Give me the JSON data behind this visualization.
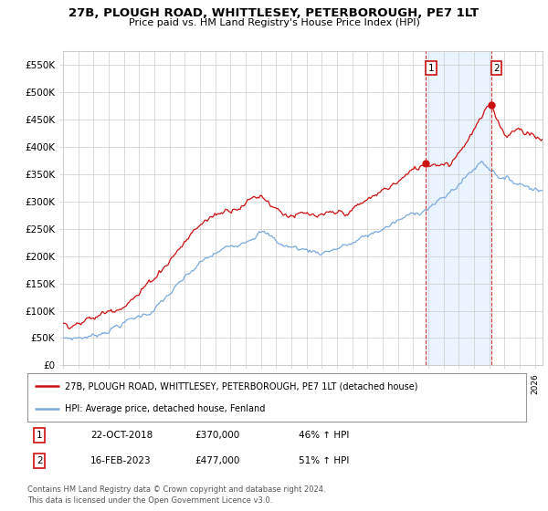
{
  "title": "27B, PLOUGH ROAD, WHITTLESEY, PETERBOROUGH, PE7 1LT",
  "subtitle": "Price paid vs. HM Land Registry's House Price Index (HPI)",
  "ylim": [
    0,
    575000
  ],
  "xlim_start": 1995.0,
  "xlim_end": 2026.5,
  "hpi_color": "#7aaadd",
  "price_color": "#cc1111",
  "marker1_date": 2018.81,
  "marker2_date": 2023.12,
  "marker1_value": 370000,
  "marker2_value": 477000,
  "fill_color": "#ddeeff",
  "legend_line1": "27B, PLOUGH ROAD, WHITTLESEY, PETERBOROUGH, PE7 1LT (detached house)",
  "legend_line2": "HPI: Average price, detached house, Fenland",
  "note1_date": "22-OCT-2018",
  "note1_price": "£370,000",
  "note1_hpi": "46% ↑ HPI",
  "note2_date": "16-FEB-2023",
  "note2_price": "£477,000",
  "note2_hpi": "51% ↑ HPI",
  "footer": "Contains HM Land Registry data © Crown copyright and database right 2024.\nThis data is licensed under the Open Government Licence v3.0.",
  "background_color": "#ffffff",
  "grid_color": "#cccccc"
}
